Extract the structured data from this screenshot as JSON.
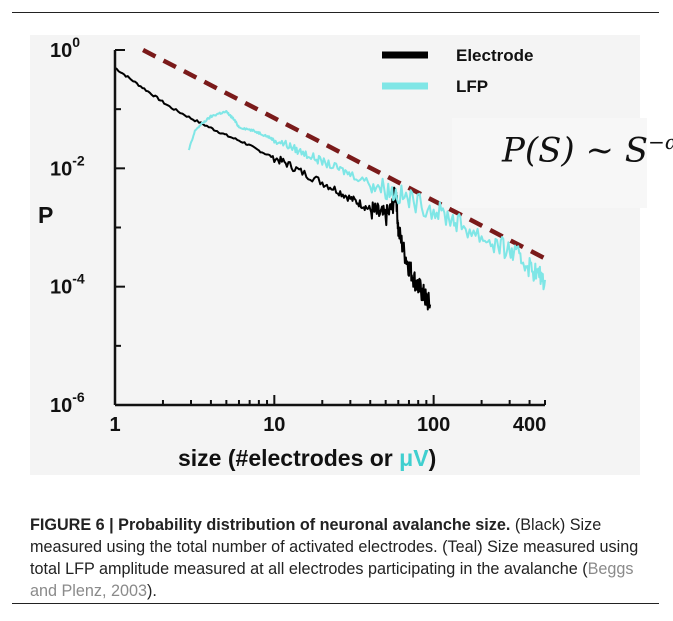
{
  "chart_data": {
    "type": "line",
    "xscale": "log",
    "yscale": "log",
    "xlim": [
      1,
      500
    ],
    "ylim": [
      1e-06,
      1
    ],
    "x_ticks": [
      "1",
      "10",
      "100",
      "400"
    ],
    "y_ticks": [
      {
        "base": "10",
        "exp": "0"
      },
      {
        "base": "10",
        "exp": "-2"
      },
      {
        "base": "10",
        "exp": "-4"
      },
      {
        "base": "10",
        "exp": "-6"
      }
    ],
    "ylabel": "P",
    "xlabel": {
      "main": "size (#electrodes or ",
      "unit": "μV",
      "close": ")"
    },
    "legend_position": "top-right",
    "series": [
      {
        "name": "Electrode",
        "color": "#000000",
        "x": [
          1,
          1.3,
          1.7,
          2.2,
          3,
          4,
          5,
          6.5,
          8,
          10,
          12,
          15,
          20,
          25,
          30,
          35,
          40,
          45,
          50,
          55,
          58,
          60,
          65,
          70,
          75,
          80,
          85,
          90,
          95
        ],
        "y": [
          0.5,
          0.3,
          0.18,
          0.11,
          0.07,
          0.048,
          0.036,
          0.027,
          0.02,
          0.015,
          0.012,
          0.0085,
          0.0058,
          0.0042,
          0.0031,
          0.0025,
          0.002,
          0.0017,
          0.0015,
          0.0022,
          0.0045,
          0.0009,
          0.0004,
          0.00022,
          0.00014,
          0.0001,
          8e-05,
          6e-05,
          5e-05
        ]
      },
      {
        "name": "LFP",
        "color": "#7fe6e6",
        "x": [
          2.9,
          3.2,
          3.6,
          4,
          4.5,
          5,
          5.5,
          6,
          7,
          8,
          9,
          10,
          12,
          14,
          17,
          20,
          25,
          30,
          40,
          50,
          60,
          75,
          100,
          125,
          150,
          200,
          250,
          300,
          350,
          400,
          450,
          500
        ],
        "y": [
          0.02,
          0.045,
          0.06,
          0.075,
          0.085,
          0.09,
          0.07,
          0.05,
          0.045,
          0.04,
          0.035,
          0.03,
          0.025,
          0.02,
          0.016,
          0.013,
          0.01,
          0.008,
          0.0058,
          0.0045,
          0.0036,
          0.0028,
          0.002,
          0.0015,
          0.0011,
          0.0007,
          0.0005,
          0.0004,
          0.0003,
          0.00022,
          0.00016,
          0.00013
        ]
      }
    ],
    "fit_line": {
      "style": "dashed",
      "color": "#7a1a1a",
      "x": [
        1.5,
        500
      ],
      "y": [
        1,
        0.0003
      ]
    },
    "annotation": {
      "base": "P(S) ~ S",
      "exp": "−α"
    }
  },
  "caption": {
    "title": "FIGURE 6 | Probability distribution of neuronal avalanche size.",
    "body": " (Black) Size measured using the total number of activated electrodes. (Teal) Size measured using total LFP amplitude measured at all electrodes participating in the avalanche (",
    "citation": "Beggs and Plenz, 2003",
    "end": ")."
  }
}
